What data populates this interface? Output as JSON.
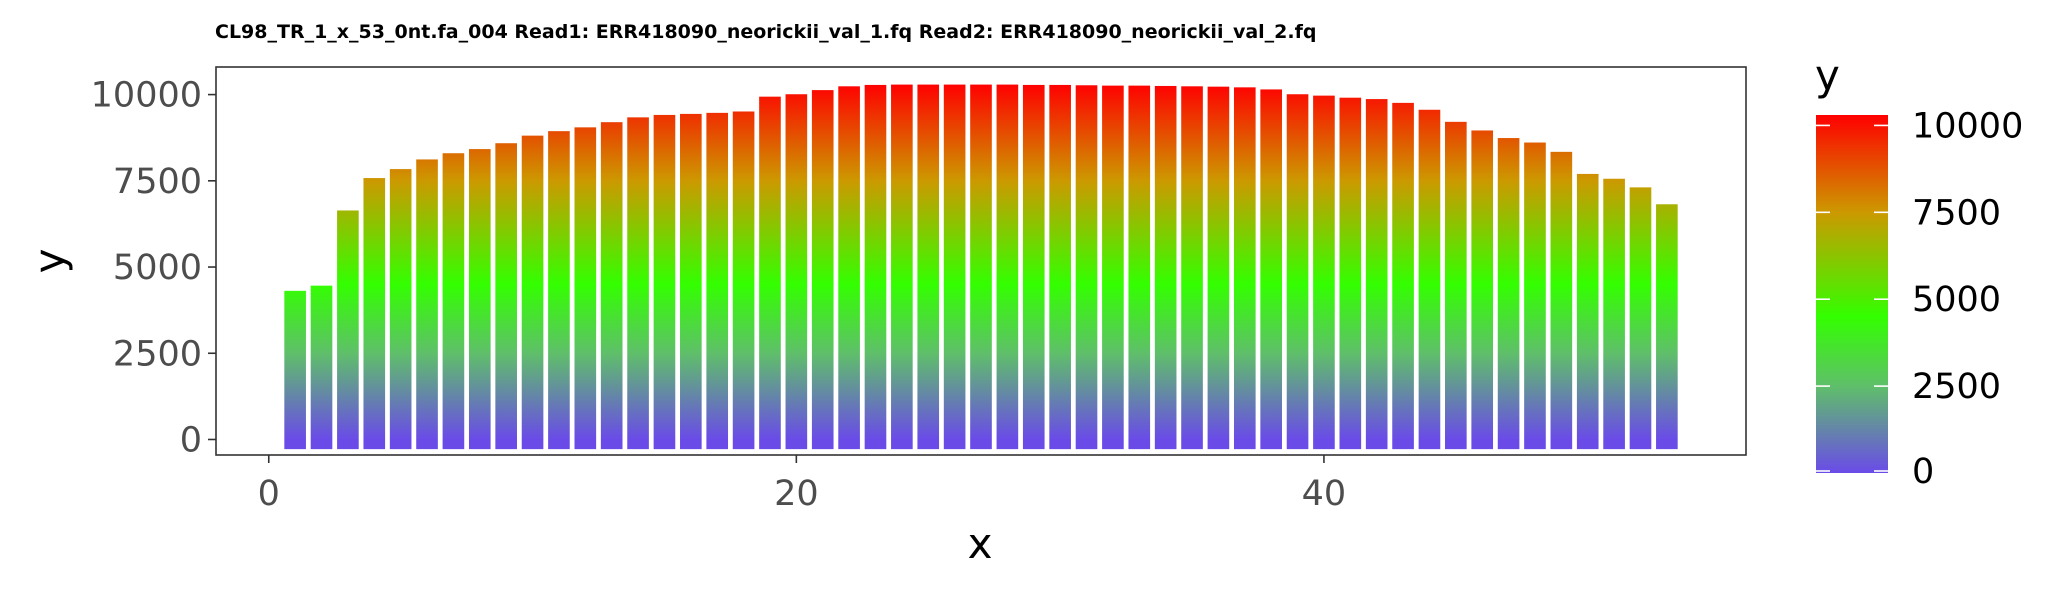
{
  "chart_data": {
    "type": "bar",
    "title": "CL98_TR_1_x_53_0nt.fa_004 Read1: ERR418090_neorickii_val_1.fq Read2: ERR418090_neorickii_val_2.fq",
    "xlabel": "x",
    "ylabel": "y",
    "xlim": [
      -2,
      56
    ],
    "ylim": [
      -450,
      10800
    ],
    "x_ticks": [
      0,
      20,
      40
    ],
    "y_ticks": [
      0,
      2500,
      5000,
      7500,
      10000
    ],
    "x": [
      1,
      2,
      3,
      4,
      5,
      6,
      7,
      8,
      9,
      10,
      11,
      12,
      13,
      14,
      15,
      16,
      17,
      18,
      19,
      20,
      21,
      22,
      23,
      24,
      25,
      26,
      27,
      28,
      29,
      30,
      31,
      32,
      33,
      34,
      35,
      36,
      37,
      38,
      39,
      40,
      41,
      42,
      43,
      44,
      45,
      46,
      47,
      48,
      49,
      50,
      51,
      52,
      53
    ],
    "values": [
      4310,
      4460,
      6640,
      7580,
      7840,
      8120,
      8300,
      8420,
      8590,
      8810,
      8940,
      9050,
      9200,
      9340,
      9410,
      9440,
      9470,
      9510,
      9940,
      10010,
      10130,
      10240,
      10280,
      10290,
      10290,
      10290,
      10290,
      10290,
      10280,
      10280,
      10270,
      10260,
      10260,
      10250,
      10240,
      10230,
      10210,
      10150,
      10010,
      9970,
      9910,
      9870,
      9760,
      9560,
      9210,
      8960,
      8740,
      8610,
      8340,
      7700,
      7560,
      7310,
      6820
    ],
    "grid": false,
    "color_scale": {
      "title": "y",
      "ticks": [
        0,
        2500,
        5000,
        7500,
        10000
      ],
      "stops": [
        {
          "value": 0,
          "color": "#6a4be8"
        },
        {
          "value": 2500,
          "color": "#5fbf6a"
        },
        {
          "value": 4500,
          "color": "#33ff00"
        },
        {
          "value": 7500,
          "color": "#cc9900"
        },
        {
          "value": 10300,
          "color": "#ff0000"
        }
      ],
      "legend_position": "right"
    }
  }
}
